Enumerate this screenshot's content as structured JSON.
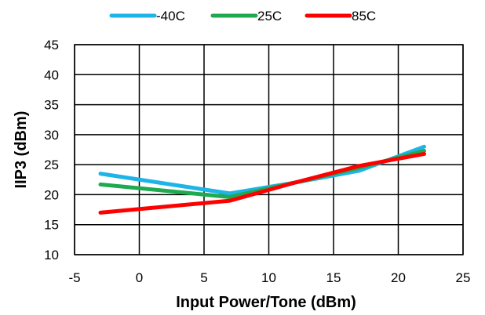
{
  "chart_data": {
    "type": "line",
    "title": "",
    "xlabel": "Input Power/Tone (dBm)",
    "ylabel": "IIP3 (dBm)",
    "xlim": [
      -5,
      25
    ],
    "ylim": [
      10,
      45
    ],
    "xticks": [
      "-5",
      "0",
      "5",
      "10",
      "15",
      "20",
      "25"
    ],
    "yticks": [
      "10",
      "15",
      "20",
      "25",
      "30",
      "35",
      "40",
      "45"
    ],
    "grid": true,
    "legend_position": "top",
    "series": [
      {
        "name": "-40C",
        "color": "#1fb4e8",
        "x": [
          -3,
          7,
          12,
          17,
          22
        ],
        "y": [
          23.5,
          20.2,
          22.0,
          24.0,
          28.0
        ]
      },
      {
        "name": "25C",
        "color": "#1faa50",
        "x": [
          -3,
          7,
          12,
          17,
          22
        ],
        "y": [
          21.7,
          19.6,
          22.0,
          24.5,
          27.3
        ]
      },
      {
        "name": "85C",
        "color": "#ff0000",
        "x": [
          -3,
          7,
          12,
          17,
          22
        ],
        "y": [
          17.0,
          19.0,
          22.0,
          24.8,
          26.8
        ]
      }
    ]
  }
}
